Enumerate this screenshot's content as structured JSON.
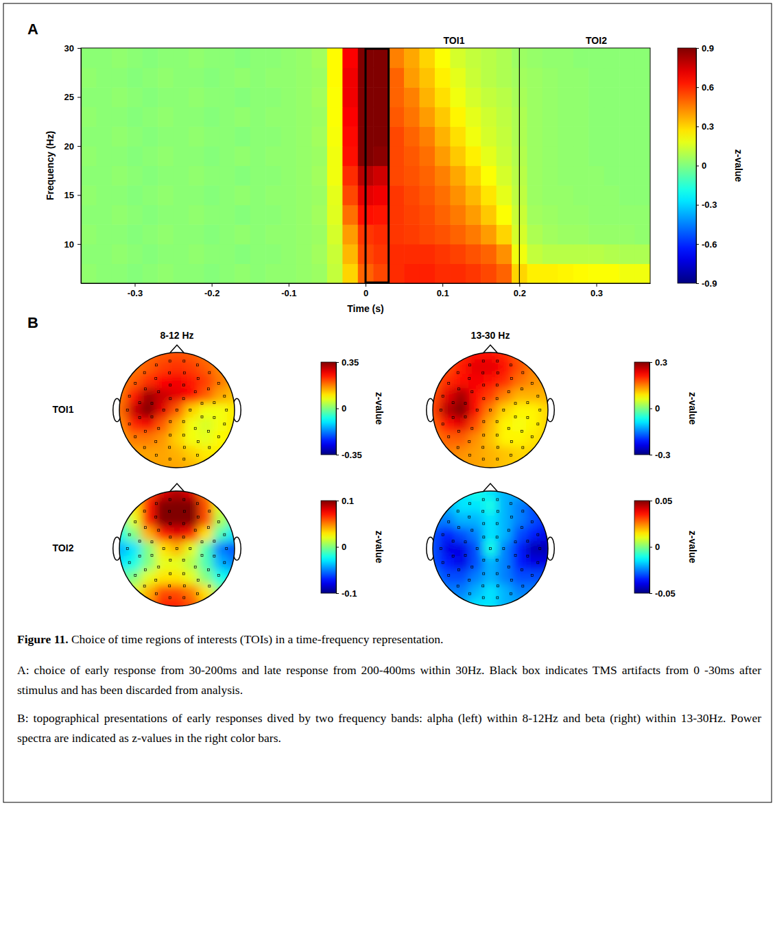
{
  "caption": {
    "label": "Figure 11.",
    "title": "Choice of time regions of interests (TOIs) in a time-frequency representation.",
    "paragraphs": [
      "A: choice of early response from 30-200ms and late response from 200-400ms within 30Hz. Black box indicates TMS artifacts from 0 -30ms after stimulus and has been discarded from analysis.",
      "B: topographical presentations of early responses dived by two frequency bands: alpha (left) within 8-12Hz and beta (right) within 13-30Hz. Power spectra are indicated as z-values in the right color bars."
    ]
  },
  "chart_data": [
    {
      "type": "heatmap",
      "panel": "A",
      "xlabel": "Time (s)",
      "ylabel": "Frequency (Hz)",
      "xlim": [
        -0.37,
        0.37
      ],
      "ylim": [
        6,
        30
      ],
      "xticks": [
        -0.3,
        -0.2,
        -0.1,
        0,
        0.1,
        0.2,
        0.3
      ],
      "yticks": [
        10,
        15,
        20,
        25,
        30
      ],
      "x": [
        -0.36,
        -0.34,
        -0.32,
        -0.3,
        -0.28,
        -0.26,
        -0.24,
        -0.22,
        -0.2,
        -0.18,
        -0.16,
        -0.14,
        -0.12,
        -0.1,
        -0.08,
        -0.06,
        -0.04,
        -0.02,
        0.0,
        0.02,
        0.04,
        0.06,
        0.08,
        0.1,
        0.12,
        0.14,
        0.16,
        0.18,
        0.2,
        0.22,
        0.24,
        0.26,
        0.28,
        0.3,
        0.32,
        0.34,
        0.36
      ],
      "y": [
        7,
        9,
        11,
        13,
        15,
        17,
        19,
        21,
        23,
        25,
        27,
        29
      ],
      "values": [
        [
          0.03,
          0.02,
          0.02,
          0.01,
          0.02,
          0.03,
          0.02,
          0.02,
          0.01,
          0.02,
          0.03,
          0.02,
          0.03,
          0.03,
          0.04,
          0.05,
          0.12,
          0.3,
          0.5,
          0.55,
          0.6,
          0.62,
          0.62,
          0.6,
          0.6,
          0.58,
          0.55,
          0.5,
          0.3,
          0.25,
          0.25,
          0.24,
          0.23,
          0.22,
          0.22,
          0.2,
          0.2
        ],
        [
          0.02,
          0.02,
          0.03,
          0.02,
          0.01,
          0.02,
          0.02,
          0.03,
          0.02,
          0.02,
          0.01,
          0.02,
          0.02,
          0.03,
          0.04,
          0.06,
          0.13,
          0.35,
          0.55,
          0.58,
          0.6,
          0.6,
          0.6,
          0.58,
          0.56,
          0.53,
          0.5,
          0.42,
          0.2,
          0.12,
          0.1,
          0.1,
          0.1,
          0.1,
          0.09,
          0.08,
          0.08
        ],
        [
          0.03,
          0.02,
          0.02,
          0.01,
          0.02,
          0.03,
          0.02,
          0.02,
          0.01,
          0.02,
          0.03,
          0.02,
          0.03,
          0.03,
          0.04,
          0.05,
          0.15,
          0.4,
          0.58,
          0.6,
          0.58,
          0.57,
          0.55,
          0.53,
          0.5,
          0.46,
          0.4,
          0.3,
          0.15,
          0.08,
          0.06,
          0.05,
          0.05,
          0.04,
          0.04,
          0.04,
          0.03
        ],
        [
          0.02,
          0.02,
          0.03,
          0.02,
          0.01,
          0.02,
          0.02,
          0.03,
          0.02,
          0.02,
          0.01,
          0.02,
          0.02,
          0.03,
          0.04,
          0.06,
          0.17,
          0.48,
          0.65,
          0.64,
          0.58,
          0.56,
          0.54,
          0.5,
          0.46,
          0.4,
          0.32,
          0.22,
          0.13,
          0.06,
          0.05,
          0.04,
          0.04,
          0.03,
          0.03,
          0.03,
          0.03
        ],
        [
          0.03,
          0.02,
          0.02,
          0.01,
          0.02,
          0.03,
          0.02,
          0.02,
          0.01,
          0.02,
          0.03,
          0.02,
          0.03,
          0.03,
          0.04,
          0.05,
          0.18,
          0.55,
          0.72,
          0.7,
          0.58,
          0.55,
          0.52,
          0.48,
          0.42,
          0.35,
          0.27,
          0.18,
          0.11,
          0.05,
          0.04,
          0.04,
          0.03,
          0.03,
          0.03,
          0.02,
          0.02
        ],
        [
          0.02,
          0.02,
          0.03,
          0.02,
          0.01,
          0.02,
          0.02,
          0.03,
          0.02,
          0.02,
          0.01,
          0.02,
          0.02,
          0.03,
          0.04,
          0.06,
          0.2,
          0.6,
          0.8,
          0.76,
          0.55,
          0.53,
          0.5,
          0.45,
          0.38,
          0.3,
          0.22,
          0.15,
          0.1,
          0.05,
          0.04,
          0.03,
          0.03,
          0.03,
          0.02,
          0.02,
          0.02
        ],
        [
          0.03,
          0.02,
          0.02,
          0.01,
          0.02,
          0.03,
          0.02,
          0.02,
          0.01,
          0.02,
          0.03,
          0.02,
          0.03,
          0.03,
          0.04,
          0.05,
          0.2,
          0.65,
          0.92,
          0.88,
          0.55,
          0.52,
          0.48,
          0.4,
          0.32,
          0.25,
          0.18,
          0.13,
          0.09,
          0.05,
          0.04,
          0.03,
          0.03,
          0.02,
          0.02,
          0.02,
          0.02
        ],
        [
          0.02,
          0.02,
          0.03,
          0.02,
          0.01,
          0.02,
          0.02,
          0.03,
          0.02,
          0.02,
          0.01,
          0.02,
          0.02,
          0.03,
          0.04,
          0.06,
          0.21,
          0.66,
          0.95,
          0.92,
          0.55,
          0.5,
          0.45,
          0.36,
          0.28,
          0.2,
          0.15,
          0.12,
          0.08,
          0.05,
          0.04,
          0.03,
          0.03,
          0.02,
          0.02,
          0.02,
          0.02
        ],
        [
          0.03,
          0.02,
          0.02,
          0.01,
          0.02,
          0.03,
          0.02,
          0.02,
          0.01,
          0.02,
          0.03,
          0.02,
          0.03,
          0.03,
          0.04,
          0.05,
          0.22,
          0.68,
          0.95,
          0.93,
          0.52,
          0.47,
          0.4,
          0.32,
          0.24,
          0.18,
          0.14,
          0.11,
          0.08,
          0.05,
          0.04,
          0.03,
          0.03,
          0.02,
          0.02,
          0.02,
          0.02
        ],
        [
          0.02,
          0.02,
          0.03,
          0.02,
          0.01,
          0.02,
          0.02,
          0.03,
          0.02,
          0.02,
          0.01,
          0.02,
          0.02,
          0.03,
          0.04,
          0.06,
          0.22,
          0.7,
          0.96,
          0.93,
          0.5,
          0.45,
          0.36,
          0.28,
          0.2,
          0.15,
          0.12,
          0.1,
          0.07,
          0.05,
          0.04,
          0.03,
          0.03,
          0.02,
          0.02,
          0.02,
          0.02
        ],
        [
          0.03,
          0.02,
          0.02,
          0.01,
          0.02,
          0.03,
          0.02,
          0.02,
          0.01,
          0.02,
          0.03,
          0.02,
          0.03,
          0.03,
          0.04,
          0.05,
          0.23,
          0.7,
          0.96,
          0.92,
          0.5,
          0.4,
          0.33,
          0.25,
          0.18,
          0.13,
          0.1,
          0.08,
          0.06,
          0.05,
          0.04,
          0.03,
          0.03,
          0.02,
          0.02,
          0.02,
          0.02
        ],
        [
          0.02,
          0.02,
          0.03,
          0.02,
          0.01,
          0.02,
          0.02,
          0.03,
          0.02,
          0.02,
          0.01,
          0.02,
          0.02,
          0.03,
          0.04,
          0.06,
          0.23,
          0.68,
          0.95,
          0.9,
          0.45,
          0.38,
          0.3,
          0.22,
          0.15,
          0.12,
          0.1,
          0.08,
          0.05,
          0.04,
          0.03,
          0.03,
          0.02,
          0.02,
          0.02,
          0.02,
          0.02
        ]
      ],
      "colorbar": {
        "lim": [
          -0.9,
          0.9
        ],
        "ticks": [
          -0.9,
          -0.6,
          -0.3,
          0,
          0.3,
          0.6,
          0.9
        ],
        "label": "z-value"
      },
      "artifact_window": [
        0,
        0.03
      ],
      "tois": [
        {
          "label": "TOI1",
          "range": [
            0.03,
            0.2
          ]
        },
        {
          "label": "TOI2",
          "range": [
            0.2,
            0.4
          ]
        }
      ]
    },
    {
      "type": "topomap",
      "panel": "B",
      "columns": [
        "8-12 Hz",
        "13-30 Hz"
      ],
      "rows": [
        "TOI1",
        "TOI2"
      ],
      "x": [
        -1,
        -0.75,
        -0.5,
        -0.25,
        0,
        0.25,
        0.5,
        0.75,
        1
      ],
      "y": [
        -1,
        -0.75,
        -0.5,
        -0.25,
        0,
        0.25,
        0.5,
        0.75,
        1
      ],
      "maps": [
        [
          {
            "values": [
              [
                0.15,
                0.17,
                0.19,
                0.2,
                0.21,
                0.2,
                0.18,
                0.16,
                0.15
              ],
              [
                0.16,
                0.18,
                0.2,
                0.22,
                0.23,
                0.22,
                0.2,
                0.17,
                0.15
              ],
              [
                0.17,
                0.2,
                0.23,
                0.26,
                0.27,
                0.25,
                0.22,
                0.18,
                0.15
              ],
              [
                0.18,
                0.25,
                0.33,
                0.3,
                0.28,
                0.26,
                0.2,
                0.15,
                0.13
              ],
              [
                0.19,
                0.3,
                0.35,
                0.28,
                0.2,
                0.12,
                0.08,
                0.08,
                0.1
              ],
              [
                0.17,
                0.24,
                0.27,
                0.2,
                0.14,
                0.08,
                0.06,
                0.08,
                0.1
              ],
              [
                0.15,
                0.18,
                0.18,
                0.16,
                0.12,
                0.08,
                0.07,
                0.09,
                0.1
              ],
              [
                0.14,
                0.15,
                0.15,
                0.15,
                0.14,
                0.12,
                0.1,
                0.1,
                0.1
              ],
              [
                0.13,
                0.14,
                0.15,
                0.15,
                0.15,
                0.14,
                0.12,
                0.11,
                0.1
              ]
            ],
            "colorbar": {
              "lim": [
                -0.35,
                0.35
              ],
              "ticks": [
                -0.35,
                0,
                0.35
              ],
              "label": "z-value"
            }
          },
          {
            "values": [
              [
                0.15,
                0.17,
                0.2,
                0.22,
                0.22,
                0.2,
                0.17,
                0.15,
                0.14
              ],
              [
                0.16,
                0.18,
                0.21,
                0.24,
                0.24,
                0.22,
                0.18,
                0.15,
                0.14
              ],
              [
                0.17,
                0.2,
                0.22,
                0.23,
                0.22,
                0.2,
                0.16,
                0.14,
                0.13
              ],
              [
                0.18,
                0.24,
                0.28,
                0.22,
                0.19,
                0.15,
                0.12,
                0.12,
                0.12
              ],
              [
                0.19,
                0.27,
                0.3,
                0.22,
                0.15,
                0.1,
                0.08,
                0.08,
                0.1
              ],
              [
                0.17,
                0.22,
                0.24,
                0.18,
                0.12,
                0.08,
                0.07,
                0.08,
                0.1
              ],
              [
                0.15,
                0.17,
                0.17,
                0.14,
                0.11,
                0.08,
                0.08,
                0.09,
                0.1
              ],
              [
                0.14,
                0.15,
                0.14,
                0.13,
                0.12,
                0.11,
                0.1,
                0.1,
                0.1
              ],
              [
                0.13,
                0.13,
                0.13,
                0.13,
                0.12,
                0.11,
                0.1,
                0.1,
                0.1
              ]
            ],
            "colorbar": {
              "lim": [
                -0.3,
                0.3
              ],
              "ticks": [
                -0.3,
                0,
                0.3
              ],
              "label": "z-value"
            }
          }
        ],
        [
          {
            "values": [
              [
                0.0,
                0.03,
                0.06,
                0.08,
                0.09,
                0.08,
                0.05,
                0.02,
                0.0
              ],
              [
                0.0,
                0.03,
                0.07,
                0.1,
                0.11,
                0.1,
                0.06,
                0.02,
                0.0
              ],
              [
                -0.01,
                0.02,
                0.07,
                0.1,
                0.11,
                0.1,
                0.06,
                0.01,
                -0.01
              ],
              [
                -0.02,
                0.0,
                0.04,
                0.07,
                0.08,
                0.07,
                0.03,
                -0.01,
                -0.03
              ],
              [
                -0.04,
                -0.03,
                0.0,
                0.03,
                0.04,
                0.02,
                -0.01,
                -0.05,
                -0.06
              ],
              [
                -0.03,
                -0.02,
                0.0,
                0.02,
                0.02,
                0.01,
                -0.01,
                -0.04,
                -0.05
              ],
              [
                -0.01,
                0.0,
                0.02,
                0.03,
                0.03,
                0.02,
                0.0,
                -0.02,
                -0.03
              ],
              [
                0.0,
                0.02,
                0.04,
                0.06,
                0.06,
                0.05,
                0.03,
                0.0,
                -0.01
              ],
              [
                0.0,
                0.02,
                0.05,
                0.07,
                0.07,
                0.06,
                0.04,
                0.01,
                0.0
              ]
            ],
            "colorbar": {
              "lim": [
                -0.1,
                0.1
              ],
              "ticks": [
                -0.1,
                0,
                0.1
              ],
              "label": "z-value"
            }
          },
          {
            "values": [
              [
                -0.02,
                -0.02,
                -0.015,
                -0.01,
                -0.015,
                -0.02,
                -0.02,
                -0.02,
                -0.02
              ],
              [
                -0.02,
                -0.02,
                -0.015,
                -0.015,
                -0.01,
                -0.02,
                -0.025,
                -0.03,
                -0.03
              ],
              [
                -0.025,
                -0.025,
                -0.02,
                -0.02,
                -0.015,
                -0.02,
                -0.025,
                -0.03,
                -0.035
              ],
              [
                -0.03,
                -0.035,
                -0.03,
                -0.025,
                -0.015,
                -0.02,
                -0.03,
                -0.035,
                -0.04
              ],
              [
                -0.03,
                -0.04,
                -0.04,
                -0.03,
                -0.01,
                -0.025,
                -0.035,
                -0.045,
                -0.045
              ],
              [
                -0.03,
                -0.035,
                -0.04,
                -0.03,
                -0.02,
                -0.025,
                -0.035,
                -0.04,
                -0.04
              ],
              [
                -0.025,
                -0.03,
                -0.03,
                -0.025,
                -0.02,
                -0.025,
                -0.03,
                -0.03,
                -0.03
              ],
              [
                -0.02,
                -0.025,
                -0.025,
                -0.02,
                -0.015,
                -0.02,
                -0.025,
                -0.025,
                -0.025
              ],
              [
                -0.02,
                -0.02,
                -0.02,
                -0.015,
                -0.015,
                -0.02,
                -0.02,
                -0.02,
                -0.02
              ]
            ],
            "colorbar": {
              "lim": [
                -0.05,
                0.05
              ],
              "ticks": [
                -0.05,
                0,
                0.05
              ],
              "label": "z-value"
            }
          }
        ]
      ]
    }
  ]
}
